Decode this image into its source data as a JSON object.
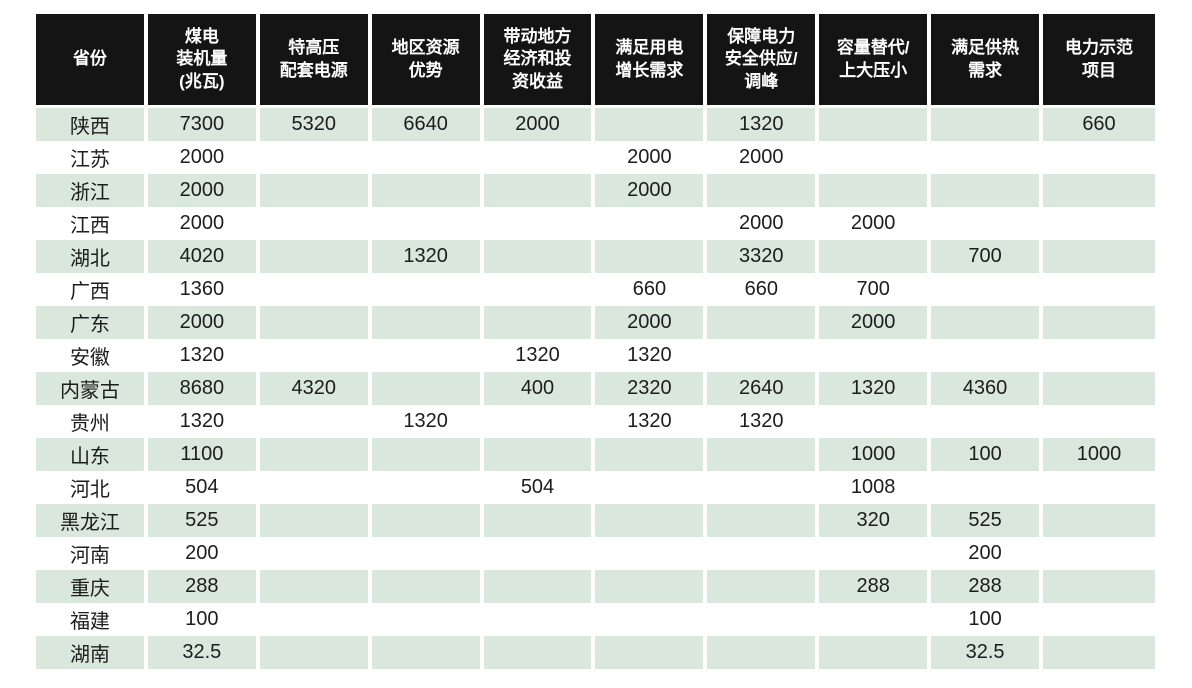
{
  "colors": {
    "header_bg": "#141414",
    "header_text": "#ffffff",
    "row_alt_bg": "#d9e7dc",
    "row_bg": "#ffffff",
    "body_text": "#1d1d1d"
  },
  "table": {
    "columns": [
      "省份",
      "煤电\n装机量\n(兆瓦)",
      "特高压\n配套电源",
      "地区资源\n优势",
      "带动地方\n经济和投\n资收益",
      "满足用电\n增长需求",
      "保障电力\n安全供应/\n调峰",
      "容量替代/\n上大压小",
      "满足供热\n需求",
      "电力示范\n项目"
    ],
    "rows": [
      {
        "province": "陕西",
        "values": [
          "7300",
          "5320",
          "6640",
          "2000",
          "",
          "1320",
          "",
          "",
          "660"
        ]
      },
      {
        "province": "江苏",
        "values": [
          "2000",
          "",
          "",
          "",
          "2000",
          "2000",
          "",
          "",
          ""
        ]
      },
      {
        "province": "浙江",
        "values": [
          "2000",
          "",
          "",
          "",
          "2000",
          "",
          "",
          "",
          ""
        ]
      },
      {
        "province": "江西",
        "values": [
          "2000",
          "",
          "",
          "",
          "",
          "2000",
          "2000",
          "",
          ""
        ]
      },
      {
        "province": "湖北",
        "values": [
          "4020",
          "",
          "1320",
          "",
          "",
          "3320",
          "",
          "700",
          ""
        ]
      },
      {
        "province": "广西",
        "values": [
          "1360",
          "",
          "",
          "",
          "660",
          "660",
          "700",
          "",
          ""
        ]
      },
      {
        "province": "广东",
        "values": [
          "2000",
          "",
          "",
          "",
          "2000",
          "",
          "2000",
          "",
          ""
        ]
      },
      {
        "province": "安徽",
        "values": [
          "1320",
          "",
          "",
          "1320",
          "1320",
          "",
          "",
          "",
          ""
        ]
      },
      {
        "province": "内蒙古",
        "values": [
          "8680",
          "4320",
          "",
          "400",
          "2320",
          "2640",
          "1320",
          "4360",
          ""
        ]
      },
      {
        "province": "贵州",
        "values": [
          "1320",
          "",
          "1320",
          "",
          "1320",
          "1320",
          "",
          "",
          ""
        ]
      },
      {
        "province": "山东",
        "values": [
          "1100",
          "",
          "",
          "",
          "",
          "",
          "1000",
          "100",
          "1000"
        ]
      },
      {
        "province": "河北",
        "values": [
          "504",
          "",
          "",
          "504",
          "",
          "",
          "1008",
          "",
          ""
        ]
      },
      {
        "province": "黑龙江",
        "values": [
          "525",
          "",
          "",
          "",
          "",
          "",
          "320",
          "525",
          ""
        ]
      },
      {
        "province": "河南",
        "values": [
          "200",
          "",
          "",
          "",
          "",
          "",
          "",
          "200",
          ""
        ]
      },
      {
        "province": "重庆",
        "values": [
          "288",
          "",
          "",
          "",
          "",
          "",
          "288",
          "288",
          ""
        ]
      },
      {
        "province": "福建",
        "values": [
          "100",
          "",
          "",
          "",
          "",
          "",
          "",
          "100",
          ""
        ]
      },
      {
        "province": "湖南",
        "values": [
          "32.5",
          "",
          "",
          "",
          "",
          "",
          "",
          "32.5",
          ""
        ]
      }
    ]
  }
}
